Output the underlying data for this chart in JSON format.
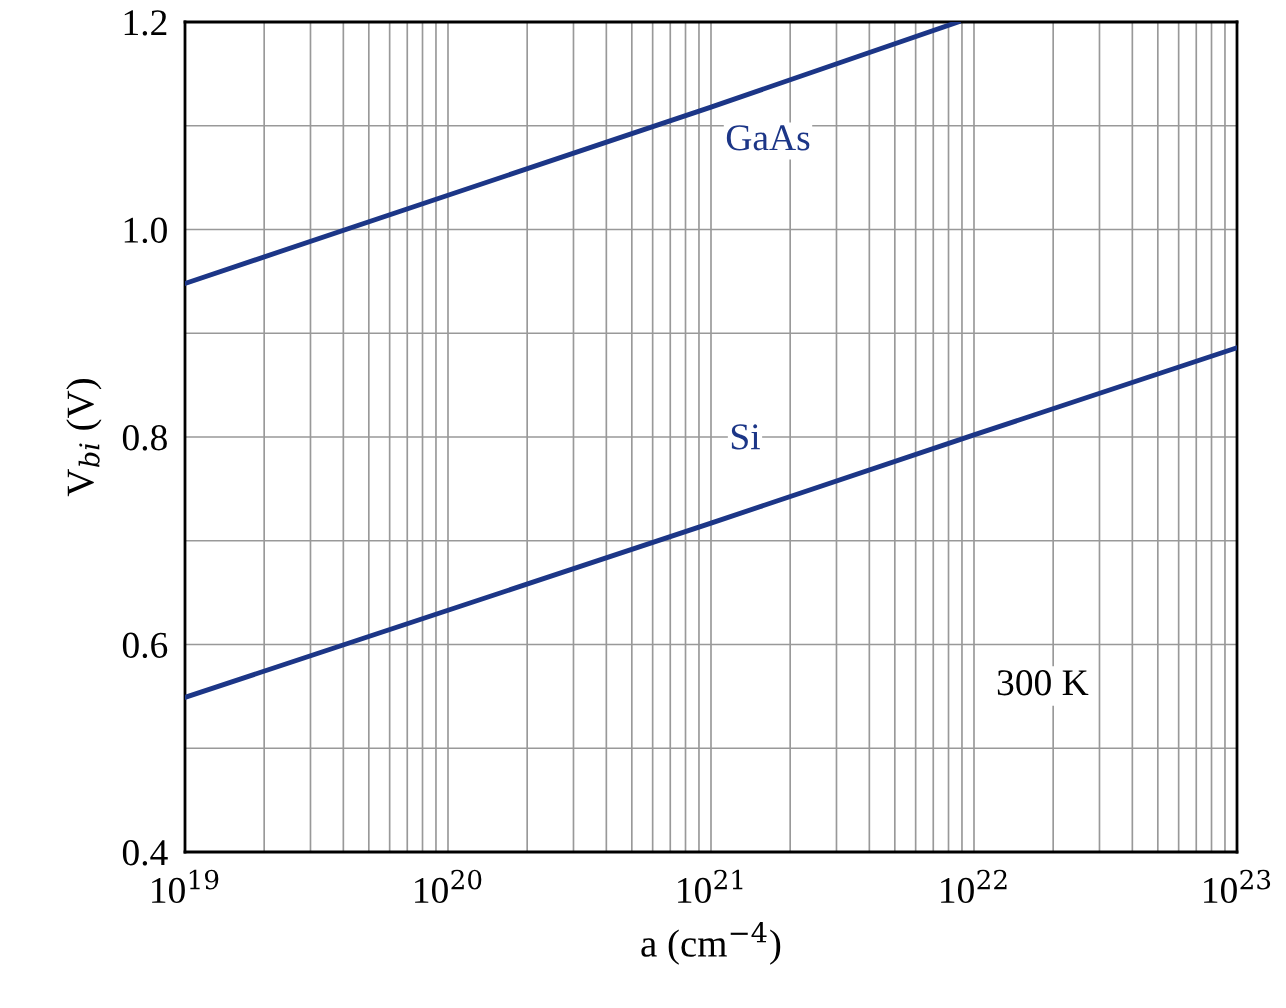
{
  "chart_data": {
    "type": "line",
    "xlabel": "a (cm$^{−4}$)",
    "ylabel": "V$_{bi}$ (V)",
    "log": "x",
    "series": [
      {
        "name": "GaAs",
        "color": "#1c3687",
        "x": [
          1e+19,
          1e+20,
          1e+21,
          8.7e+21
        ],
        "values": [
          0.948,
          1.033,
          1.118,
          1.2
        ]
      },
      {
        "name": "Si",
        "color": "#1c3687",
        "x": [
          1e+19,
          1e+20,
          1e+21,
          1e+22,
          1e+23
        ],
        "values": [
          0.549,
          0.633,
          0.717,
          0.802,
          0.886
        ]
      }
    ],
    "xlim": [
      1e+19,
      1e+23
    ],
    "xticks": [
      {
        "value": 1e+19,
        "label": "10$^{19}$"
      },
      {
        "value": 2e+19,
        "label": null
      },
      {
        "value": 3e+19,
        "label": null
      },
      {
        "value": 4e+19,
        "label": null
      },
      {
        "value": 5e+19,
        "label": null
      },
      {
        "value": 6e+19,
        "label": null
      },
      {
        "value": 7e+19,
        "label": null
      },
      {
        "value": 8e+19,
        "label": null
      },
      {
        "value": 9e+19,
        "label": null
      },
      {
        "value": 1e+20,
        "label": "10$^{20}$"
      },
      {
        "value": 2e+20,
        "label": null
      },
      {
        "value": 3e+20,
        "label": null
      },
      {
        "value": 4e+20,
        "label": null
      },
      {
        "value": 5e+20,
        "label": null
      },
      {
        "value": 6e+20,
        "label": null
      },
      {
        "value": 7e+20,
        "label": null
      },
      {
        "value": 8e+20,
        "label": null
      },
      {
        "value": 9e+20,
        "label": null
      },
      {
        "value": 1e+21,
        "label": "10$^{21}$"
      },
      {
        "value": 2e+21,
        "label": null
      },
      {
        "value": 3e+21,
        "label": null
      },
      {
        "value": 4e+21,
        "label": null
      },
      {
        "value": 5e+21,
        "label": null
      },
      {
        "value": 6e+21,
        "label": null
      },
      {
        "value": 7e+21,
        "label": null
      },
      {
        "value": 8e+21,
        "label": null
      },
      {
        "value": 9e+21,
        "label": null
      },
      {
        "value": 1e+22,
        "label": "10$^{22}$"
      },
      {
        "value": 2e+22,
        "label": null
      },
      {
        "value": 3e+22,
        "label": null
      },
      {
        "value": 4e+22,
        "label": null
      },
      {
        "value": 5e+22,
        "label": null
      },
      {
        "value": 6e+22,
        "label": null
      },
      {
        "value": 7e+22,
        "label": null
      },
      {
        "value": 8e+22,
        "label": null
      },
      {
        "value": 9e+22,
        "label": null
      },
      {
        "value": 1e+23,
        "label": "10$^{23}$"
      }
    ],
    "ylim": [
      0.4,
      1.2
    ],
    "yticks": [
      {
        "value": 0.4,
        "label": "0.4"
      },
      {
        "value": 0.5,
        "label": null
      },
      {
        "value": 0.6,
        "label": "0.6"
      },
      {
        "value": 0.7,
        "label": null
      },
      {
        "value": 0.8,
        "label": "0.8"
      },
      {
        "value": 0.9,
        "label": null
      },
      {
        "value": 1.0,
        "label": "1.0"
      },
      {
        "value": 1.1,
        "label": null
      },
      {
        "value": 1.2,
        "label": "1.2"
      }
    ],
    "grid": true,
    "marker": "none",
    "line_style": "solid",
    "legend": false,
    "annotations": [
      "300 K"
    ]
  }
}
